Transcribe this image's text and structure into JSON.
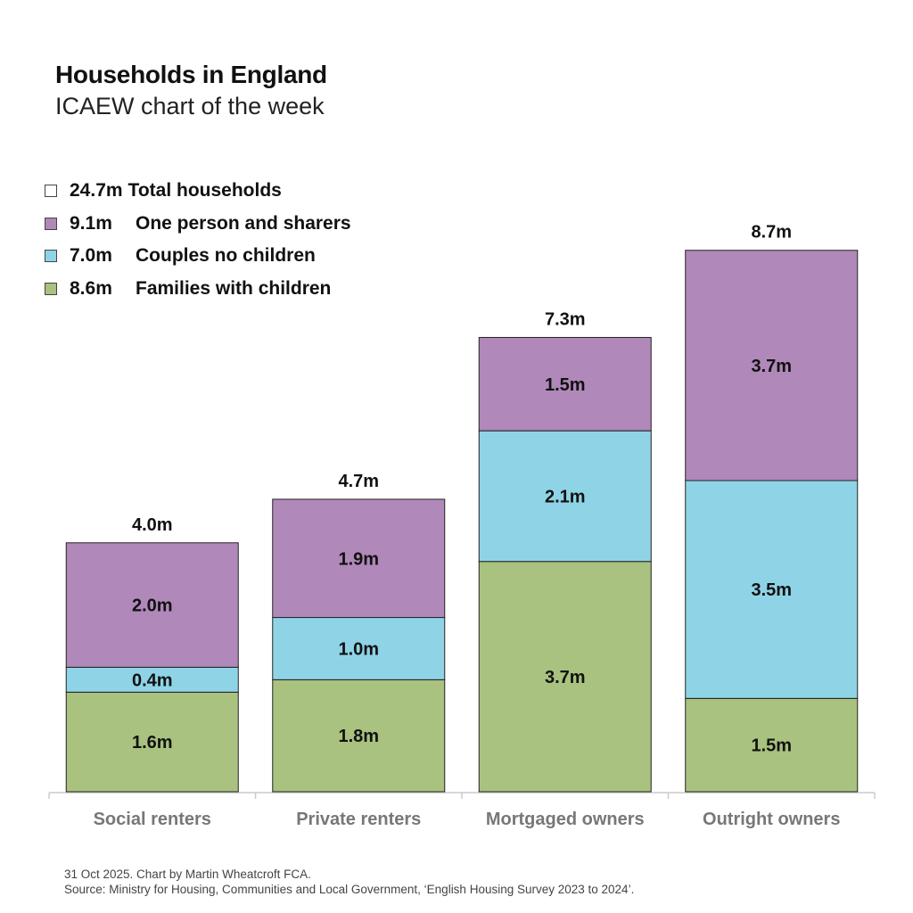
{
  "header": {
    "title": "Households in England",
    "subtitle": "ICAEW chart of the week"
  },
  "legend": [
    {
      "value": "24.7m",
      "label": "Total households",
      "color": "#ffffff"
    },
    {
      "value": "9.1m",
      "label": "One person and sharers",
      "color": "#b088b9"
    },
    {
      "value": "7.0m",
      "label": "Couples no children",
      "color": "#8fd4e6"
    },
    {
      "value": "8.6m",
      "label": "Families with children",
      "color": "#a9c27f"
    }
  ],
  "chart_data": {
    "type": "bar",
    "stacked": true,
    "title": "Households in England",
    "subtitle": "ICAEW chart of the week",
    "categories": [
      "Social renters",
      "Private renters",
      "Mortgaged owners",
      "Outright owners"
    ],
    "totals": [
      4.0,
      4.7,
      7.3,
      8.7
    ],
    "total_labels": [
      "4.0m",
      "4.7m",
      "7.3m",
      "8.7m"
    ],
    "series": [
      {
        "name": "Families with children",
        "color": "#a9c27f",
        "values": [
          1.6,
          1.8,
          3.7,
          1.5
        ],
        "labels": [
          "1.6m",
          "1.8m",
          "3.7m",
          "1.5m"
        ]
      },
      {
        "name": "Couples no children",
        "color": "#8fd4e6",
        "values": [
          0.4,
          1.0,
          2.1,
          3.5
        ],
        "labels": [
          "0.4m",
          "1.0m",
          "2.1m",
          "3.5m"
        ]
      },
      {
        "name": "One person and sharers",
        "color": "#b088b9",
        "values": [
          2.0,
          1.9,
          1.5,
          3.7
        ],
        "labels": [
          "2.0m",
          "1.9m",
          "1.5m",
          "3.7m"
        ]
      }
    ],
    "unit": "m",
    "ylim": [
      0,
      8.7
    ],
    "grid": false,
    "legend_position": "top-left"
  },
  "footer": {
    "line1": "31 Oct 2025.   Chart by Martin Wheatcroft FCA.",
    "line2": "Source: Ministry for Housing, Communities and Local Government, ‘English Housing Survey 2023 to 2024’."
  }
}
